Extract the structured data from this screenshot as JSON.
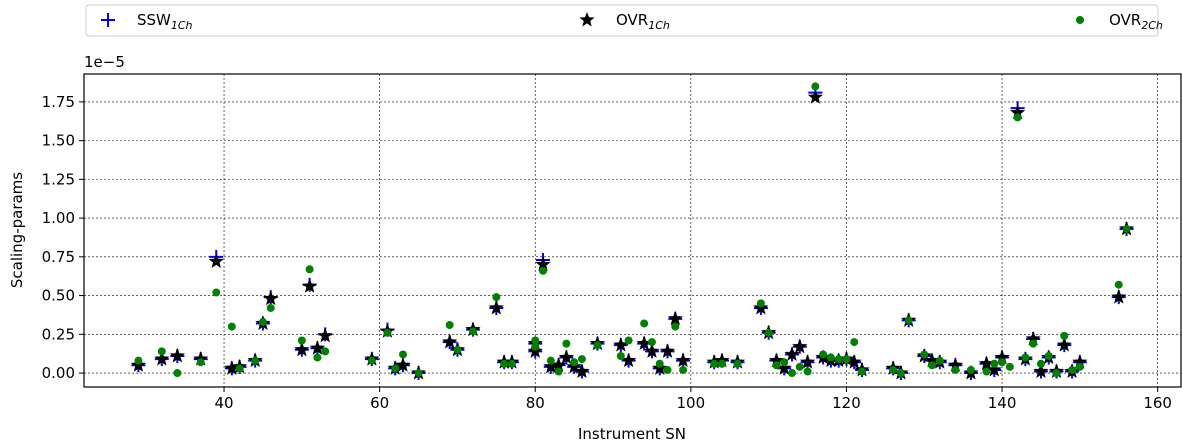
{
  "chart_data": {
    "type": "scatter",
    "xlabel": "Instrument SN",
    "ylabel": "Scaling-params",
    "y_scale_label": "1e−5",
    "y_multiplier": 1e-05,
    "xlim": [
      22,
      163
    ],
    "ylim": [
      -0.09,
      1.93
    ],
    "x_ticks": [
      40,
      60,
      80,
      100,
      120,
      140,
      160
    ],
    "y_ticks": [
      0.0,
      0.25,
      0.5,
      0.75,
      1.0,
      1.25,
      1.5,
      1.75
    ],
    "x_tick_labels": [
      "40",
      "60",
      "80",
      "100",
      "120",
      "140",
      "160"
    ],
    "y_tick_labels": [
      "0.00",
      "0.25",
      "0.50",
      "0.75",
      "1.00",
      "1.25",
      "1.50",
      "1.75"
    ],
    "grid": true,
    "legend_position": "top, spanning width",
    "series": [
      {
        "name": "SSW",
        "subscript": "1Ch",
        "marker": "plus",
        "color": "#0000ff",
        "points": [
          [
            29,
            0.05
          ],
          [
            32,
            0.09
          ],
          [
            34,
            0.11
          ],
          [
            37,
            0.09
          ],
          [
            39,
            0.75
          ],
          [
            41,
            0.03
          ],
          [
            42,
            0.04
          ],
          [
            44,
            0.08
          ],
          [
            45,
            0.32
          ],
          [
            46,
            0.49
          ],
          [
            50,
            0.15
          ],
          [
            51,
            0.57
          ],
          [
            52,
            0.16
          ],
          [
            53,
            0.25
          ],
          [
            59,
            0.09
          ],
          [
            61,
            0.28
          ],
          [
            62,
            0.03
          ],
          [
            63,
            0.05
          ],
          [
            65,
            0.0
          ],
          [
            69,
            0.2
          ],
          [
            70,
            0.15
          ],
          [
            72,
            0.28
          ],
          [
            75,
            0.42
          ],
          [
            76,
            0.07
          ],
          [
            77,
            0.07
          ],
          [
            80,
            0.14
          ],
          [
            80,
            0.19
          ],
          [
            81,
            0.73
          ],
          [
            82,
            0.04
          ],
          [
            83,
            0.05
          ],
          [
            84,
            0.1
          ],
          [
            85,
            0.04
          ],
          [
            86,
            0.01
          ],
          [
            88,
            0.19
          ],
          [
            91,
            0.18
          ],
          [
            92,
            0.08
          ],
          [
            94,
            0.19
          ],
          [
            95,
            0.14
          ],
          [
            96,
            0.03
          ],
          [
            97,
            0.14
          ],
          [
            98,
            0.35
          ],
          [
            99,
            0.08
          ],
          [
            103,
            0.07
          ],
          [
            104,
            0.08
          ],
          [
            106,
            0.07
          ],
          [
            109,
            0.42
          ],
          [
            110,
            0.26
          ],
          [
            111,
            0.08
          ],
          [
            112,
            0.03
          ],
          [
            113,
            0.12
          ],
          [
            114,
            0.17
          ],
          [
            115,
            0.07
          ],
          [
            116,
            1.81
          ],
          [
            117,
            0.1
          ],
          [
            118,
            0.08
          ],
          [
            119,
            0.08
          ],
          [
            120,
            0.09
          ],
          [
            121,
            0.07
          ],
          [
            122,
            0.02
          ],
          [
            126,
            0.03
          ],
          [
            127,
            0.0
          ],
          [
            128,
            0.34
          ],
          [
            130,
            0.11
          ],
          [
            131,
            0.08
          ],
          [
            132,
            0.07
          ],
          [
            134,
            0.05
          ],
          [
            136,
            0.0
          ],
          [
            138,
            0.06
          ],
          [
            139,
            0.02
          ],
          [
            140,
            0.1
          ],
          [
            142,
            1.71
          ],
          [
            143,
            0.09
          ],
          [
            144,
            0.22
          ],
          [
            145,
            0.01
          ],
          [
            146,
            0.1
          ],
          [
            147,
            0.01
          ],
          [
            148,
            0.18
          ],
          [
            149,
            0.01
          ],
          [
            150,
            0.07
          ],
          [
            155,
            0.49
          ],
          [
            156,
            0.93
          ]
        ]
      },
      {
        "name": "OVR",
        "subscript": "1Ch",
        "marker": "star",
        "color": "#000000",
        "points": [
          [
            29,
            0.05
          ],
          [
            32,
            0.09
          ],
          [
            34,
            0.11
          ],
          [
            37,
            0.09
          ],
          [
            39,
            0.72
          ],
          [
            41,
            0.03
          ],
          [
            42,
            0.04
          ],
          [
            44,
            0.08
          ],
          [
            45,
            0.32
          ],
          [
            46,
            0.48
          ],
          [
            50,
            0.15
          ],
          [
            51,
            0.56
          ],
          [
            52,
            0.16
          ],
          [
            53,
            0.24
          ],
          [
            59,
            0.09
          ],
          [
            61,
            0.27
          ],
          [
            62,
            0.03
          ],
          [
            63,
            0.05
          ],
          [
            65,
            0.0
          ],
          [
            69,
            0.2
          ],
          [
            70,
            0.15
          ],
          [
            72,
            0.28
          ],
          [
            75,
            0.42
          ],
          [
            76,
            0.07
          ],
          [
            77,
            0.07
          ],
          [
            80,
            0.14
          ],
          [
            80,
            0.19
          ],
          [
            81,
            0.7
          ],
          [
            82,
            0.04
          ],
          [
            83,
            0.05
          ],
          [
            84,
            0.1
          ],
          [
            85,
            0.04
          ],
          [
            86,
            0.01
          ],
          [
            88,
            0.19
          ],
          [
            91,
            0.18
          ],
          [
            92,
            0.08
          ],
          [
            94,
            0.19
          ],
          [
            95,
            0.14
          ],
          [
            96,
            0.03
          ],
          [
            97,
            0.14
          ],
          [
            98,
            0.35
          ],
          [
            99,
            0.08
          ],
          [
            103,
            0.07
          ],
          [
            104,
            0.08
          ],
          [
            106,
            0.07
          ],
          [
            109,
            0.42
          ],
          [
            110,
            0.26
          ],
          [
            111,
            0.08
          ],
          [
            112,
            0.03
          ],
          [
            113,
            0.12
          ],
          [
            114,
            0.17
          ],
          [
            115,
            0.07
          ],
          [
            116,
            1.78
          ],
          [
            117,
            0.1
          ],
          [
            118,
            0.08
          ],
          [
            119,
            0.08
          ],
          [
            120,
            0.09
          ],
          [
            121,
            0.07
          ],
          [
            122,
            0.02
          ],
          [
            126,
            0.03
          ],
          [
            127,
            0.0
          ],
          [
            128,
            0.34
          ],
          [
            130,
            0.11
          ],
          [
            131,
            0.08
          ],
          [
            132,
            0.07
          ],
          [
            134,
            0.05
          ],
          [
            136,
            0.0
          ],
          [
            138,
            0.06
          ],
          [
            139,
            0.02
          ],
          [
            140,
            0.1
          ],
          [
            142,
            1.68
          ],
          [
            143,
            0.09
          ],
          [
            144,
            0.22
          ],
          [
            145,
            0.01
          ],
          [
            146,
            0.1
          ],
          [
            147,
            0.01
          ],
          [
            148,
            0.18
          ],
          [
            149,
            0.01
          ],
          [
            150,
            0.07
          ],
          [
            155,
            0.49
          ],
          [
            156,
            0.93
          ]
        ]
      },
      {
        "name": "OVR",
        "subscript": "2Ch",
        "marker": "circle",
        "color": "#008000",
        "points": [
          [
            29,
            0.08
          ],
          [
            32,
            0.14
          ],
          [
            34,
            0.0
          ],
          [
            37,
            0.07
          ],
          [
            39,
            0.52
          ],
          [
            41,
            0.3
          ],
          [
            42,
            0.03
          ],
          [
            44,
            0.08
          ],
          [
            45,
            0.33
          ],
          [
            46,
            0.42
          ],
          [
            50,
            0.21
          ],
          [
            51,
            0.67
          ],
          [
            52,
            0.1
          ],
          [
            53,
            0.14
          ],
          [
            59,
            0.08
          ],
          [
            61,
            0.26
          ],
          [
            62,
            0.03
          ],
          [
            63,
            0.12
          ],
          [
            65,
            0.0
          ],
          [
            69,
            0.31
          ],
          [
            70,
            0.15
          ],
          [
            72,
            0.27
          ],
          [
            75,
            0.49
          ],
          [
            76,
            0.06
          ],
          [
            77,
            0.06
          ],
          [
            80,
            0.21
          ],
          [
            80,
            0.17
          ],
          [
            81,
            0.66
          ],
          [
            82,
            0.08
          ],
          [
            83,
            0.01
          ],
          [
            84,
            0.19
          ],
          [
            85,
            0.07
          ],
          [
            86,
            0.09
          ],
          [
            88,
            0.18
          ],
          [
            91,
            0.11
          ],
          [
            92,
            0.21
          ],
          [
            94,
            0.32
          ],
          [
            95,
            0.2
          ],
          [
            96,
            0.06
          ],
          [
            97,
            0.02
          ],
          [
            98,
            0.3
          ],
          [
            99,
            0.02
          ],
          [
            103,
            0.06
          ],
          [
            104,
            0.06
          ],
          [
            106,
            0.06
          ],
          [
            109,
            0.45
          ],
          [
            110,
            0.26
          ],
          [
            111,
            0.05
          ],
          [
            112,
            0.07
          ],
          [
            113,
            0.0
          ],
          [
            114,
            0.04
          ],
          [
            115,
            0.01
          ],
          [
            116,
            1.85
          ],
          [
            117,
            0.12
          ],
          [
            118,
            0.1
          ],
          [
            119,
            0.09
          ],
          [
            120,
            0.09
          ],
          [
            121,
            0.2
          ],
          [
            122,
            0.01
          ],
          [
            126,
            0.02
          ],
          [
            127,
            0.0
          ],
          [
            128,
            0.34
          ],
          [
            130,
            0.12
          ],
          [
            131,
            0.05
          ],
          [
            132,
            0.08
          ],
          [
            134,
            0.02
          ],
          [
            136,
            0.02
          ],
          [
            138,
            0.01
          ],
          [
            139,
            0.06
          ],
          [
            140,
            0.07
          ],
          [
            141,
            0.04
          ],
          [
            142,
            1.65
          ],
          [
            143,
            0.1
          ],
          [
            144,
            0.19
          ],
          [
            145,
            0.06
          ],
          [
            146,
            0.11
          ],
          [
            147,
            0.0
          ],
          [
            148,
            0.24
          ],
          [
            149,
            0.02
          ],
          [
            150,
            0.04
          ],
          [
            155,
            0.57
          ],
          [
            156,
            0.93
          ]
        ]
      }
    ]
  }
}
